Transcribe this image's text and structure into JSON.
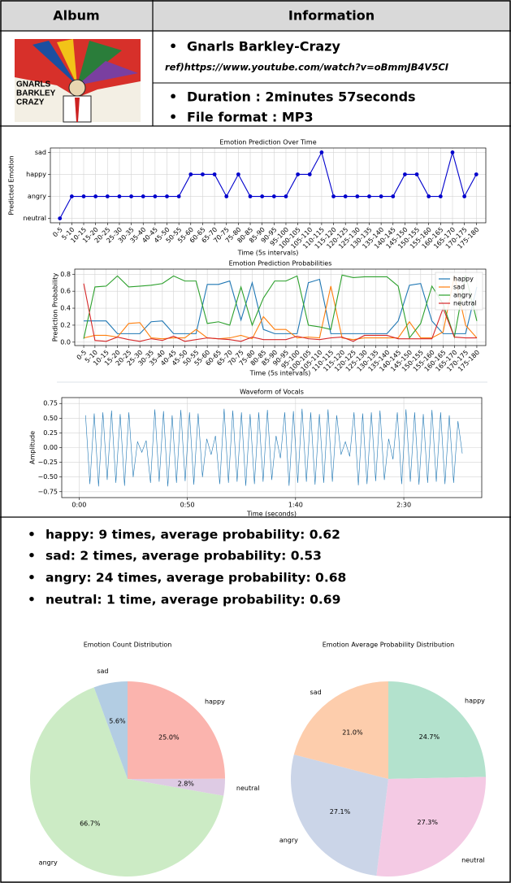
{
  "table": {
    "header": [
      "Album",
      "Information"
    ],
    "album": {
      "cover_text": [
        "GNARLS",
        "BARKLEY",
        "CRAZY"
      ]
    },
    "info": {
      "title": "Gnarls Barkley-Crazy",
      "reference": "ref)https://www.youtube.com/watch?v=oBmmJB4V5CI",
      "duration": "Duration : 2minutes 57seconds",
      "format": "File format : MP3"
    }
  },
  "summary": [
    "happy: 9 times, average probability: 0.62",
    "sad: 2 times, average probability: 0.53",
    "angry: 24 times, average probability: 0.68",
    "neutral: 1 time, average probability: 0.69"
  ],
  "chart_data": [
    {
      "type": "line",
      "title": "Emotion Prediction Over Time",
      "x_label": "Time (5s intervals)",
      "y_label": "Predicted Emotion",
      "categories": [
        "0-5",
        "5-10",
        "10-15",
        "15-20",
        "20-25",
        "25-30",
        "30-35",
        "35-40",
        "40-45",
        "45-50",
        "50-55",
        "55-60",
        "60-65",
        "65-70",
        "70-75",
        "75-80",
        "80-85",
        "85-90",
        "90-95",
        "95-100",
        "100-105",
        "105-110",
        "110-115",
        "115-120",
        "120-125",
        "125-130",
        "130-135",
        "135-140",
        "140-145",
        "145-150",
        "150-155",
        "155-160",
        "160-165",
        "165-170",
        "170-175",
        "175-180"
      ],
      "values": [
        0,
        1,
        1,
        1,
        1,
        1,
        1,
        1,
        1,
        1,
        1,
        2,
        2,
        2,
        1,
        2,
        1,
        1,
        1,
        1,
        2,
        2,
        3,
        1,
        1,
        1,
        1,
        1,
        1,
        2,
        2,
        1,
        1,
        3,
        1,
        2
      ],
      "color": "#0000cc",
      "markers": true,
      "ylim": [
        -0.2,
        3.2
      ],
      "yticks": [
        {
          "value": 0,
          "label": "neutral"
        },
        {
          "value": 1,
          "label": "angry"
        },
        {
          "value": 2,
          "label": "happy"
        },
        {
          "value": 3,
          "label": "sad"
        }
      ],
      "grid": true
    },
    {
      "type": "line",
      "title": "Emotion Prediction Probabilities",
      "x_label": "Time (5s intervals)",
      "y_label": "Prediction Probability",
      "categories": [
        "0-5",
        "5-10",
        "10-15",
        "15-20",
        "20-25",
        "25-30",
        "30-35",
        "35-40",
        "40-45",
        "45-50",
        "50-55",
        "55-60",
        "60-65",
        "65-70",
        "70-75",
        "75-80",
        "80-85",
        "85-90",
        "90-95",
        "95-100",
        "100-105",
        "105-110",
        "110-115",
        "115-120",
        "120-125",
        "125-130",
        "130-135",
        "135-140",
        "140-145",
        "145-150",
        "150-155",
        "155-160",
        "160-165",
        "165-170",
        "170-175",
        "175-180"
      ],
      "series": [
        {
          "name": "happy",
          "color": "#1f77b4",
          "values": [
            0.25,
            0.25,
            0.25,
            0.1,
            0.1,
            0.1,
            0.24,
            0.25,
            0.1,
            0.1,
            0.1,
            0.68,
            0.68,
            0.72,
            0.26,
            0.7,
            0.15,
            0.1,
            0.1,
            0.1,
            0.7,
            0.74,
            0.1,
            0.1,
            0.1,
            0.1,
            0.1,
            0.1,
            0.25,
            0.67,
            0.69,
            0.25,
            0.1,
            0.1,
            0.1,
            0.65
          ]
        },
        {
          "name": "sad",
          "color": "#ff7f0e",
          "values": [
            0.05,
            0.08,
            0.08,
            0.06,
            0.22,
            0.23,
            0.05,
            0.04,
            0.05,
            0.05,
            0.15,
            0.05,
            0.04,
            0.05,
            0.08,
            0.04,
            0.3,
            0.15,
            0.15,
            0.05,
            0.06,
            0.05,
            0.66,
            0.05,
            0.03,
            0.05,
            0.05,
            0.05,
            0.05,
            0.24,
            0.05,
            0.05,
            0.12,
            0.78,
            0.2,
            0.05
          ]
        },
        {
          "name": "angry",
          "color": "#2ca02c",
          "values": [
            0.04,
            0.65,
            0.66,
            0.78,
            0.65,
            0.66,
            0.67,
            0.69,
            0.78,
            0.72,
            0.72,
            0.22,
            0.24,
            0.2,
            0.65,
            0.2,
            0.52,
            0.72,
            0.72,
            0.78,
            0.2,
            0.18,
            0.15,
            0.79,
            0.76,
            0.77,
            0.77,
            0.77,
            0.66,
            0.05,
            0.22,
            0.66,
            0.45,
            0.06,
            0.79,
            0.25
          ]
        },
        {
          "name": "neutral",
          "color": "#d62728",
          "values": [
            0.69,
            0.02,
            0.01,
            0.06,
            0.03,
            0.01,
            0.04,
            0.02,
            0.07,
            0.01,
            0.03,
            0.05,
            0.04,
            0.03,
            0.01,
            0.06,
            0.03,
            0.03,
            0.03,
            0.07,
            0.04,
            0.03,
            0.05,
            0.06,
            0.01,
            0.08,
            0.08,
            0.08,
            0.04,
            0.04,
            0.04,
            0.04,
            0.4,
            0.06,
            0.05,
            0.05
          ]
        }
      ],
      "ylim": [
        -0.04,
        0.86
      ],
      "yticks": [
        {
          "value": 0,
          "label": "0.0"
        },
        0.2,
        0.4,
        0.6,
        0.8
      ],
      "grid": true,
      "legend": "upper right"
    },
    {
      "type": "line",
      "title": "Waveform of Vocals",
      "x_label": "Time (seconds)",
      "y_label": "Amplitude",
      "x": [
        3,
        5,
        7,
        9,
        11,
        13,
        15,
        17,
        19,
        21,
        23,
        25,
        27,
        29,
        31,
        33,
        35,
        37,
        39,
        41,
        43,
        45,
        47,
        49,
        51,
        53,
        55,
        57,
        59,
        61,
        63,
        65,
        67,
        69,
        71,
        73,
        75,
        77,
        79,
        81,
        83,
        85,
        87,
        89,
        91,
        93,
        95,
        97,
        99,
        101,
        103,
        105,
        107,
        109,
        111,
        113,
        115,
        117,
        119,
        121,
        123,
        125,
        127,
        129,
        131,
        133,
        135,
        137,
        139,
        141,
        143,
        145,
        147,
        149,
        151,
        153,
        155,
        157,
        159,
        161,
        163,
        165,
        167,
        169,
        171,
        173,
        175,
        177
      ],
      "values": [
        0.55,
        -0.62,
        0.58,
        -0.66,
        0.6,
        -0.55,
        0.63,
        -0.6,
        0.57,
        -0.65,
        0.6,
        -0.5,
        0.1,
        -0.08,
        0.12,
        -0.6,
        0.65,
        -0.58,
        0.62,
        -0.66,
        0.55,
        -0.6,
        0.64,
        -0.57,
        0.6,
        -0.63,
        0.58,
        -0.5,
        0.15,
        -0.12,
        0.2,
        -0.62,
        0.66,
        -0.6,
        0.63,
        -0.58,
        0.6,
        -0.65,
        0.57,
        -0.62,
        0.6,
        -0.58,
        0.64,
        -0.55,
        0.2,
        -0.18,
        0.6,
        -0.65,
        0.62,
        -0.6,
        0.66,
        -0.58,
        0.6,
        -0.63,
        0.57,
        -0.6,
        0.65,
        -0.58,
        0.55,
        -0.12,
        0.1,
        -0.15,
        0.6,
        -0.64,
        0.58,
        -0.62,
        0.6,
        -0.57,
        0.63,
        -0.55,
        0.15,
        -0.2,
        0.6,
        -0.62,
        0.65,
        -0.58,
        0.6,
        -0.63,
        0.57,
        -0.6,
        0.64,
        -0.58,
        0.6,
        -0.62,
        0.55,
        -0.6,
        0.45,
        -0.1
      ],
      "color": "#1f77b4",
      "xlim": [
        -8,
        186
      ],
      "xticks": [
        {
          "value": 0,
          "label": "0:00"
        },
        {
          "value": 50,
          "label": "0:50"
        },
        {
          "value": 100,
          "label": "1:40"
        },
        {
          "value": 150,
          "label": "2:30"
        }
      ],
      "ylim": [
        -0.85,
        0.85
      ],
      "yticks": [
        {
          "value": -0.75,
          "label": "−0.75"
        },
        {
          "value": -0.5,
          "label": "−0.50"
        },
        {
          "value": -0.25,
          "label": "−0.25"
        },
        {
          "value": 0,
          "label": "0.00"
        },
        0.25,
        {
          "value": 0.5,
          "label": "0.50"
        },
        0.75
      ],
      "grid": true
    },
    {
      "type": "pie",
      "title": "Emotion Count Distribution",
      "categories": [
        "happy",
        "neutral",
        "angry",
        "sad"
      ],
      "values": [
        25.0,
        2.8,
        66.7,
        5.6
      ],
      "value_labels": [
        "25.0%",
        "2.8%",
        "66.7%",
        "5.6%"
      ],
      "colors": [
        "#fbb4ae",
        "#decbe4",
        "#ccebc5",
        "#b3cde3"
      ]
    },
    {
      "type": "pie",
      "title": "Emotion Average Probability Distribution",
      "categories": [
        "happy",
        "neutral",
        "angry",
        "sad"
      ],
      "values": [
        24.7,
        27.3,
        27.1,
        21.0
      ],
      "value_labels": [
        "24.7%",
        "27.3%",
        "27.1%",
        "21.0%"
      ],
      "colors": [
        "#b3e2cd",
        "#f4cae4",
        "#cbd5e8",
        "#fdcdac"
      ]
    }
  ]
}
